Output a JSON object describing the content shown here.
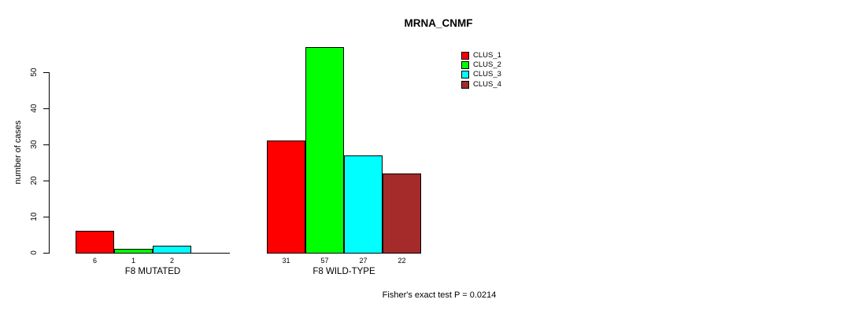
{
  "title": "MRNA_CNMF",
  "y_axis": {
    "label": "number of cases"
  },
  "footer": "Fisher's exact test P = 0.0214",
  "chart_data": {
    "type": "bar",
    "title": "MRNA_CNMF",
    "xlabel": "",
    "ylabel": "number of cases",
    "ylim": [
      0,
      57
    ],
    "yticks": [
      0,
      10,
      20,
      30,
      40,
      50
    ],
    "grid": false,
    "legend_position": "top-right",
    "categories": [
      "F8 MUTATED",
      "F8 WILD-TYPE"
    ],
    "series": [
      {
        "name": "CLUS_1",
        "color": "#FF0000",
        "values": [
          6,
          31
        ]
      },
      {
        "name": "CLUS_2",
        "color": "#00FF00",
        "values": [
          1,
          57
        ]
      },
      {
        "name": "CLUS_3",
        "color": "#00FFFF",
        "values": [
          2,
          27
        ]
      },
      {
        "name": "CLUS_4",
        "color": "#A52A2A",
        "values": [
          0,
          22
        ]
      }
    ],
    "bar_value_labels": [
      [
        "6",
        "1",
        "2",
        ""
      ],
      [
        "31",
        "57",
        "27",
        "22"
      ]
    ],
    "annotation": "Fisher's exact test P = 0.0214"
  }
}
